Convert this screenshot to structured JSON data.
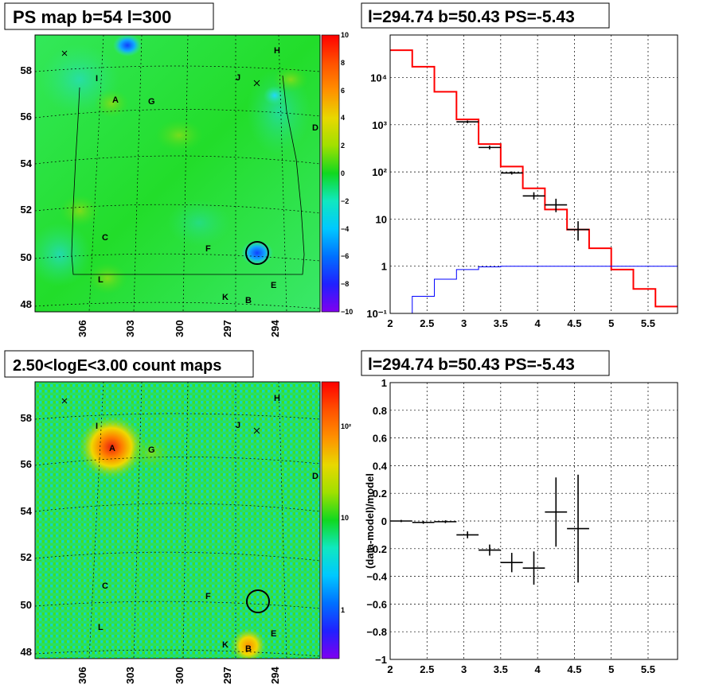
{
  "titles": {
    "ps_map": "PS map b=54 l=300",
    "spectrum": "l=294.74 b=50.43 PS=-5.43",
    "count_map": "2.50<logE<3.00 count maps",
    "residual": "l=294.74 b=50.43 PS=-5.43"
  },
  "sky_axes": {
    "lat_ticks": [
      "48",
      "50",
      "52",
      "54",
      "56",
      "58"
    ],
    "lon_ticks": [
      "306",
      "303",
      "300",
      "297",
      "294"
    ]
  },
  "sources": [
    "A",
    "B",
    "C",
    "D",
    "E",
    "F",
    "G",
    "H",
    "I",
    "J",
    "K",
    "L"
  ],
  "ps_colorbar": {
    "ticks": [
      "10",
      "8",
      "6",
      "4",
      "2",
      "0",
      "−2",
      "−4",
      "−6",
      "−8",
      "−10"
    ]
  },
  "count_colorbar": {
    "ticks": [
      "10²",
      "10",
      "1"
    ]
  },
  "chart_data": [
    {
      "type": "heatmap",
      "title": "PS map b=54 l=300",
      "xlabel": "",
      "ylabel": "",
      "zlim": [
        -10,
        10
      ],
      "features": [
        {
          "label": "circled source",
          "l": 294.74,
          "b": 50.43,
          "value": -5.43
        }
      ]
    },
    {
      "type": "line",
      "title": "l=294.74 b=50.43 PS=-5.43",
      "xlabel": "",
      "ylabel": "",
      "xlim": [
        2,
        5.9
      ],
      "ylim": [
        0.1,
        80000
      ],
      "log_y": true,
      "x_ticks": [
        "2",
        "2.5",
        "3",
        "3.5",
        "4",
        "4.5",
        "5",
        "5.5"
      ],
      "y_ticks": [
        "10⁻¹",
        "1",
        "10",
        "10²",
        "10³",
        "10⁴"
      ],
      "grid": true,
      "series": [
        {
          "color": "#ff0000",
          "bin_edges": [
            2.0,
            2.3,
            2.6,
            2.9,
            3.2,
            3.5,
            3.8,
            4.1,
            4.4,
            4.7,
            5.0,
            5.3,
            5.6,
            5.9
          ],
          "values": [
            38000,
            17000,
            5000,
            1300,
            390,
            130,
            45,
            16,
            6,
            2.4,
            0.85,
            0.33,
            0.14
          ]
        },
        {
          "color": "#0000ff",
          "bin_edges": [
            2.0,
            2.3,
            2.6,
            2.9,
            3.2,
            3.5,
            3.8,
            4.1,
            4.4,
            4.7,
            5.0,
            5.3,
            5.6,
            5.9
          ],
          "values": [
            0.09,
            0.23,
            0.53,
            0.85,
            0.97,
            1.0,
            1.0,
            1.0,
            1.0,
            1.0,
            1.0,
            1.0,
            1.0
          ]
        },
        {
          "type": "errorbar",
          "color": "#000000",
          "x": [
            3.05,
            3.35,
            3.65,
            3.95,
            4.25,
            4.55
          ],
          "xerr": [
            0.15,
            0.15,
            0.15,
            0.15,
            0.15,
            0.15
          ],
          "y": [
            1150,
            330,
            95,
            31,
            20,
            6
          ],
          "ylow": [
            1080,
            300,
            88,
            26,
            14,
            3.5
          ],
          "yhigh": [
            1230,
            360,
            102,
            37,
            27,
            9
          ]
        }
      ]
    },
    {
      "type": "heatmap",
      "title": "2.50<logE<3.00 count maps",
      "xlabel": "",
      "ylabel": "",
      "log_z": true,
      "features": [
        {
          "label": "A",
          "note": "bright source"
        },
        {
          "label": "B",
          "note": "bright source"
        }
      ]
    },
    {
      "type": "scatter",
      "title": "l=294.74 b=50.43 PS=-5.43",
      "xlabel": "",
      "ylabel": "(data-model)/model",
      "xlim": [
        2,
        5.9
      ],
      "ylim": [
        -1,
        1
      ],
      "x_ticks": [
        "2",
        "2.5",
        "3",
        "3.5",
        "4",
        "4.5",
        "5",
        "5.5"
      ],
      "y_ticks": [
        "−1",
        "−0.8",
        "−0.6",
        "−0.4",
        "−0.2",
        "0",
        "0.2",
        "0.4",
        "0.6",
        "0.8",
        "1"
      ],
      "grid": true,
      "series": [
        {
          "type": "errorbar",
          "color": "#000000",
          "x": [
            2.15,
            2.45,
            2.75,
            3.05,
            3.35,
            3.65,
            3.95,
            4.25,
            4.55
          ],
          "xerr": [
            0.15,
            0.15,
            0.15,
            0.15,
            0.15,
            0.15,
            0.15,
            0.15,
            0.15
          ],
          "y": [
            0.0,
            -0.01,
            -0.005,
            -0.1,
            -0.21,
            -0.3,
            -0.34,
            0.065,
            -0.055
          ],
          "yerr": [
            0.008,
            0.01,
            0.01,
            0.025,
            0.04,
            0.07,
            0.12,
            0.25,
            0.39
          ]
        }
      ]
    }
  ]
}
